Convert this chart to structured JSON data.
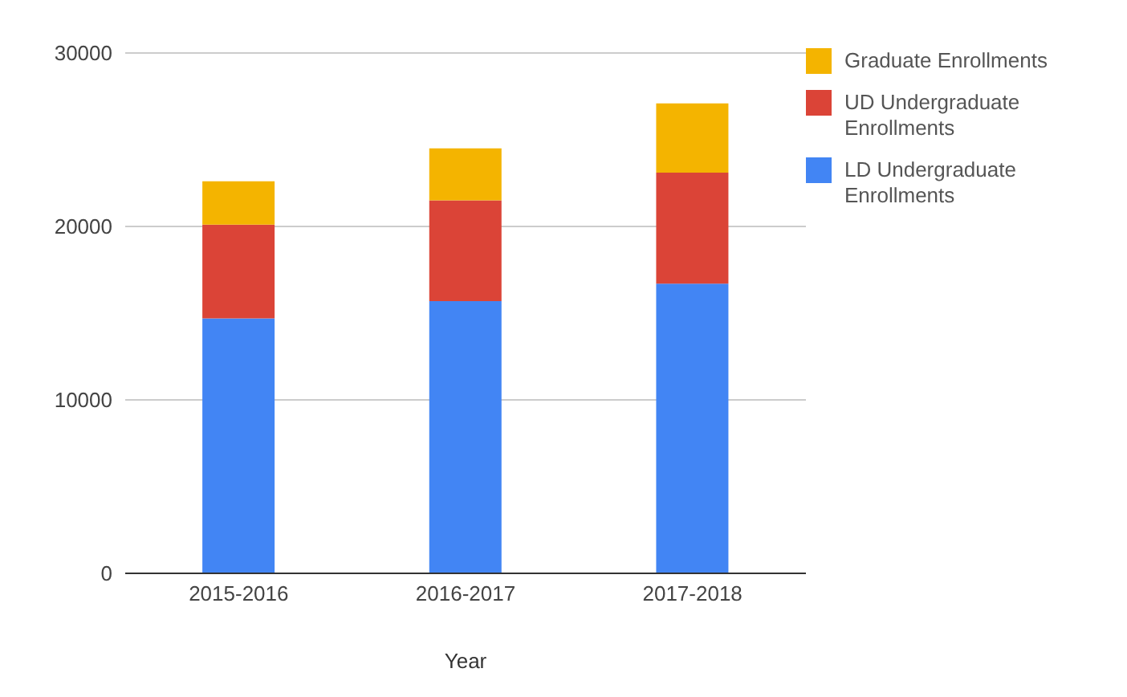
{
  "chart_data": {
    "type": "bar",
    "stacked": true,
    "xlabel": "Year",
    "categories": [
      "2015-2016",
      "2016-2017",
      "2017-2018"
    ],
    "series": [
      {
        "name": "LD Undergraduate Enrollments",
        "color": "#4285f4",
        "values": [
          14700,
          15700,
          16700
        ]
      },
      {
        "name": "UD Undergraduate Enrollments",
        "color": "#db4437",
        "values": [
          5400,
          5800,
          6400
        ]
      },
      {
        "name": "Graduate Enrollments",
        "color": "#f4b400",
        "values": [
          2500,
          3000,
          4000
        ]
      }
    ],
    "ylim": [
      0,
      30000
    ],
    "yticks": [
      0,
      10000,
      20000,
      30000
    ],
    "grid": "y",
    "legend": "right"
  }
}
